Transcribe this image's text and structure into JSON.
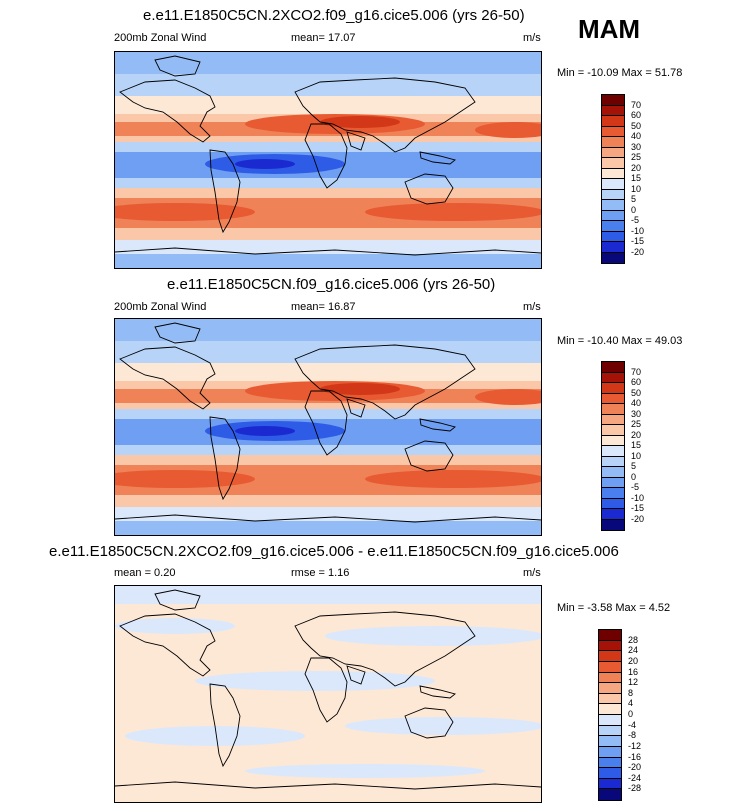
{
  "season": "MAM",
  "panels": [
    {
      "title": "e.e11.E1850C5CN.2XCO2.f09_g16.cice5.006 (yrs 26-50)",
      "left_label": "200mb Zonal Wind",
      "center_label": "mean=  17.07",
      "right_label": "m/s",
      "minmax": "Min = -10.09 Max =  51.78"
    },
    {
      "title": "e.e11.E1850C5CN.f09_g16.cice5.006 (yrs 26-50)",
      "left_label": "200mb Zonal Wind",
      "center_label": "mean=  16.87",
      "right_label": "m/s",
      "minmax": "Min = -10.40 Max =  49.03"
    },
    {
      "title": "e.e11.E1850C5CN.2XCO2.f09_g16.cice5.006 - e.e11.E1850C5CN.f09_g16.cice5.006",
      "left_label": "mean =  0.20",
      "center_label": "rmse =  1.16",
      "right_label": "m/s",
      "minmax": "Min =  -3.58 Max =   4.52"
    }
  ],
  "chart_data": [
    {
      "type": "heatmap",
      "title": "e.e11.E1850C5CN.2XCO2.f09_g16.cice5.006 (yrs 26-50)",
      "variable": "200mb Zonal Wind",
      "units": "m/s",
      "mean": 17.07,
      "min": -10.09,
      "max": 51.78,
      "colorbar_levels": [
        -20,
        -15,
        -10,
        -5,
        0,
        5,
        10,
        15,
        20,
        25,
        30,
        40,
        50,
        60,
        70
      ],
      "colorbar_colors": [
        "#08087a",
        "#1a2ad0",
        "#2e5ce6",
        "#4a80ee",
        "#6f9ff2",
        "#93bbf5",
        "#b7d3f8",
        "#dbe8fb",
        "#fde8d6",
        "#fac8a8",
        "#f6a680",
        "#f08258",
        "#e85a32",
        "#d23818",
        "#a51208",
        "#6f0000"
      ]
    },
    {
      "type": "heatmap",
      "title": "e.e11.E1850C5CN.f09_g16.cice5.006 (yrs 26-50)",
      "variable": "200mb Zonal Wind",
      "units": "m/s",
      "mean": 16.87,
      "min": -10.4,
      "max": 49.03,
      "colorbar_levels": [
        -20,
        -15,
        -10,
        -5,
        0,
        5,
        10,
        15,
        20,
        25,
        30,
        40,
        50,
        60,
        70
      ],
      "colorbar_colors": [
        "#08087a",
        "#1a2ad0",
        "#2e5ce6",
        "#4a80ee",
        "#6f9ff2",
        "#93bbf5",
        "#b7d3f8",
        "#dbe8fb",
        "#fde8d6",
        "#fac8a8",
        "#f6a680",
        "#f08258",
        "#e85a32",
        "#d23818",
        "#a51208",
        "#6f0000"
      ]
    },
    {
      "type": "heatmap",
      "title": "e.e11.E1850C5CN.2XCO2.f09_g16.cice5.006 - e.e11.E1850C5CN.f09_g16.cice5.006",
      "units": "m/s",
      "mean": 0.2,
      "rmse": 1.16,
      "min": -3.58,
      "max": 4.52,
      "colorbar_levels": [
        -28,
        -24,
        -20,
        -16,
        -12,
        -8,
        -4,
        0,
        4,
        8,
        12,
        16,
        20,
        24,
        28
      ],
      "colorbar_colors": [
        "#08087a",
        "#1a2ad0",
        "#2e5ce6",
        "#4a80ee",
        "#6f9ff2",
        "#93bbf5",
        "#b7d3f8",
        "#dbe8fb",
        "#fde8d6",
        "#fac8a8",
        "#f6a680",
        "#f08258",
        "#e85a32",
        "#d23818",
        "#a51208",
        "#6f0000"
      ]
    }
  ]
}
